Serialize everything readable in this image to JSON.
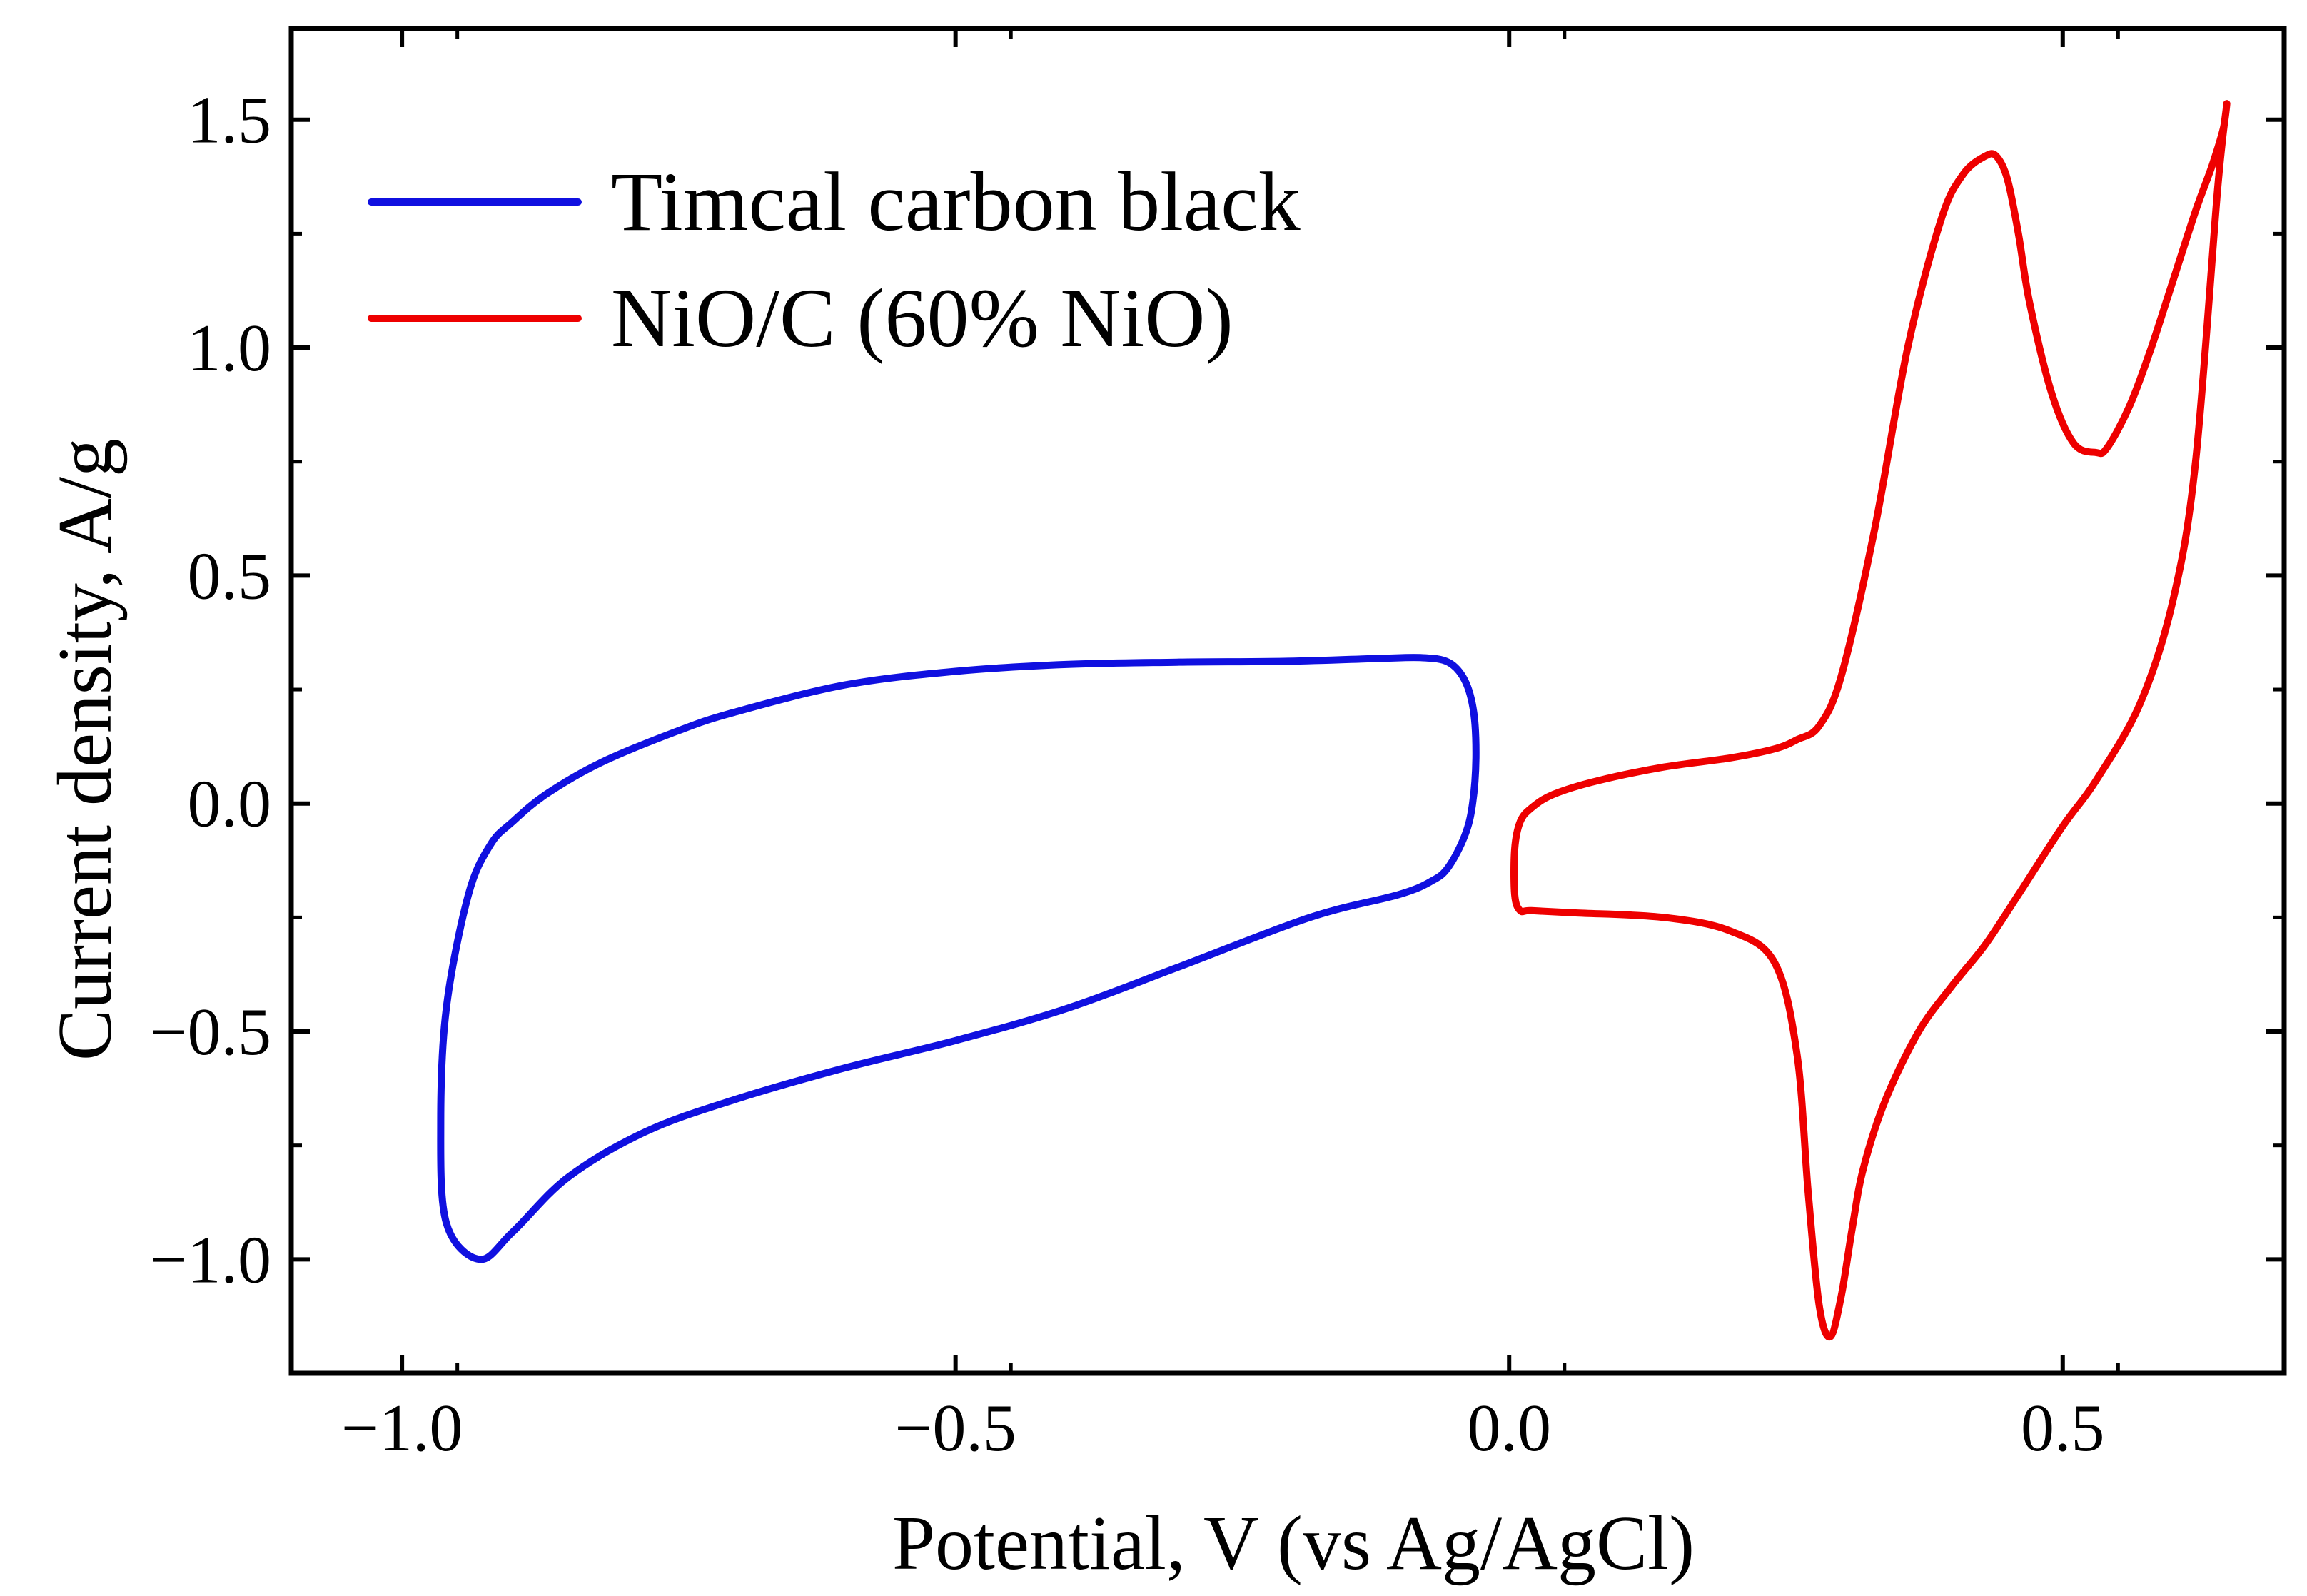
{
  "chart_data": {
    "type": "line",
    "title": "",
    "xlabel": "Potential, V (vs Ag/AgCl)",
    "ylabel": "Current density, A/g",
    "xlim": [
      -1.1,
      0.7
    ],
    "ylim": [
      -1.25,
      1.7
    ],
    "xticks": [
      -1.0,
      -0.5,
      0.0,
      0.5
    ],
    "xtick_labels": [
      "−1.0",
      "−0.5",
      "0.0",
      "0.5"
    ],
    "yticks": [
      -1.0,
      -0.5,
      0.0,
      0.5,
      1.0,
      1.5
    ],
    "ytick_labels": [
      "−1.0",
      "−0.5",
      "0.0",
      "0.5",
      "1.0",
      "1.5"
    ],
    "grid": false,
    "legend_position": "top-left",
    "series": [
      {
        "name": "Timcal carbon black",
        "color": "#1010e0",
        "x": [
          -0.93,
          -0.96,
          -0.965,
          -0.96,
          -0.94,
          -0.92,
          -0.9,
          -0.87,
          -0.82,
          -0.75,
          -0.7,
          -0.6,
          -0.5,
          -0.4,
          -0.3,
          -0.2,
          -0.12,
          -0.08,
          -0.055,
          -0.04,
          -0.032,
          -0.03,
          -0.033,
          -0.04,
          -0.055,
          -0.07,
          -0.1,
          -0.18,
          -0.3,
          -0.4,
          -0.5,
          -0.6,
          -0.7,
          -0.78,
          -0.85,
          -0.9,
          -0.93
        ],
        "y": [
          -1.0,
          -0.92,
          -0.7,
          -0.45,
          -0.2,
          -0.09,
          -0.04,
          0.02,
          0.09,
          0.16,
          0.2,
          0.26,
          0.29,
          0.305,
          0.31,
          0.312,
          0.318,
          0.32,
          0.31,
          0.27,
          0.2,
          0.1,
          0.0,
          -0.07,
          -0.14,
          -0.17,
          -0.2,
          -0.25,
          -0.36,
          -0.45,
          -0.52,
          -0.58,
          -0.65,
          -0.72,
          -0.82,
          -0.94,
          -1.0
        ]
      },
      {
        "name": "NiO/C (60% NiO)",
        "color": "#ee0000",
        "x": [
          0.01,
          0.005,
          0.005,
          0.01,
          0.02,
          0.04,
          0.08,
          0.14,
          0.2,
          0.24,
          0.26,
          0.28,
          0.3,
          0.33,
          0.36,
          0.39,
          0.41,
          0.43,
          0.44,
          0.45,
          0.46,
          0.47,
          0.49,
          0.51,
          0.53,
          0.54,
          0.56,
          0.58,
          0.6,
          0.62,
          0.635,
          0.645,
          0.648,
          0.64,
          0.62,
          0.6,
          0.57,
          0.53,
          0.5,
          0.46,
          0.43,
          0.4,
          0.37,
          0.34,
          0.32,
          0.31,
          0.3,
          0.29,
          0.28,
          0.27,
          0.26,
          0.24,
          0.2,
          0.14,
          0.06,
          0.02,
          0.01
        ],
        "y": [
          -0.235,
          -0.2,
          -0.1,
          -0.04,
          -0.01,
          0.02,
          0.05,
          0.08,
          0.1,
          0.12,
          0.14,
          0.17,
          0.28,
          0.6,
          1.0,
          1.28,
          1.38,
          1.42,
          1.42,
          1.37,
          1.25,
          1.1,
          0.9,
          0.79,
          0.77,
          0.78,
          0.87,
          1.0,
          1.15,
          1.3,
          1.4,
          1.48,
          1.53,
          1.35,
          0.75,
          0.45,
          0.22,
          0.05,
          -0.05,
          -0.2,
          -0.31,
          -0.4,
          -0.5,
          -0.65,
          -0.8,
          -0.93,
          -1.08,
          -1.17,
          -1.1,
          -0.85,
          -0.55,
          -0.35,
          -0.28,
          -0.25,
          -0.24,
          -0.235,
          -0.235
        ]
      }
    ]
  }
}
